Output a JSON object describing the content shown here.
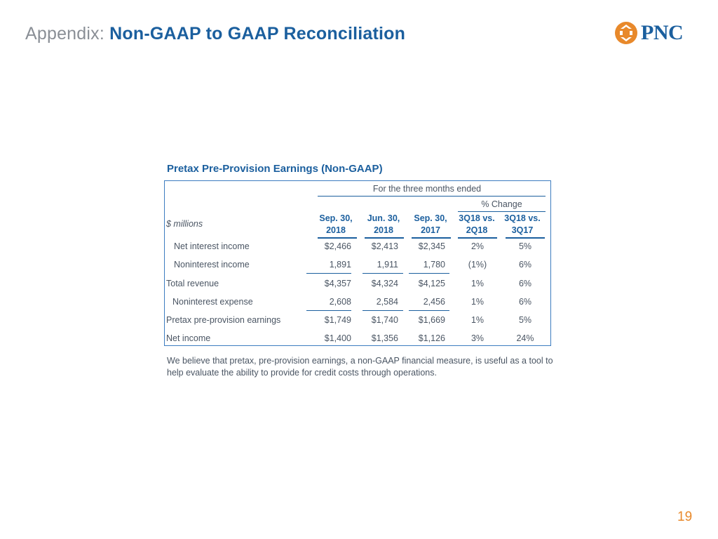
{
  "header": {
    "title_prefix": "Appendix:",
    "title_main": "Non-GAAP to GAAP Reconciliation",
    "logo_text": "PNC",
    "colors": {
      "title_blue": "#1b5f9e",
      "logo_orange": "#e8892b",
      "prefix_gray": "#8a8f96"
    }
  },
  "table": {
    "title": "Pretax Pre-Provision Earnings (Non-GAAP)",
    "group_header": "For the three months ended",
    "change_header": "% Change",
    "units_label": "$ millions",
    "columns": [
      {
        "line1": "Sep. 30,",
        "line2": "2018"
      },
      {
        "line1": "Jun. 30,",
        "line2": "2018"
      },
      {
        "line1": "Sep. 30,",
        "line2": "2017"
      },
      {
        "line1": "3Q18 vs.",
        "line2": "2Q18"
      },
      {
        "line1": "3Q18 vs.",
        "line2": "3Q17"
      }
    ],
    "rows": [
      {
        "label": "Net interest income",
        "values": [
          "$2,466",
          "$2,413",
          "$2,345",
          "2%",
          "5%"
        ]
      },
      {
        "label": "Noninterest income",
        "values": [
          "1,891",
          "1,911",
          "1,780",
          "(1%)",
          "6%"
        ]
      },
      {
        "label": "Total revenue",
        "values": [
          "$4,357",
          "$4,324",
          "$4,125",
          "1%",
          "6%"
        ]
      },
      {
        "label": "Noninterest expense",
        "values": [
          "2,608",
          "2,584",
          "2,456",
          "1%",
          "6%"
        ]
      },
      {
        "label": "Pretax pre-provision earnings",
        "values": [
          "$1,749",
          "$1,740",
          "$1,669",
          "1%",
          "5%"
        ]
      },
      {
        "label": "Net income",
        "values": [
          "$1,400",
          "$1,356",
          "$1,126",
          "3%",
          "24%"
        ]
      }
    ]
  },
  "footnote": "We believe that pretax, pre-provision earnings, a non-GAAP financial measure, is useful as a tool to help evaluate the ability to provide for credit costs through operations.",
  "page_number": "19"
}
